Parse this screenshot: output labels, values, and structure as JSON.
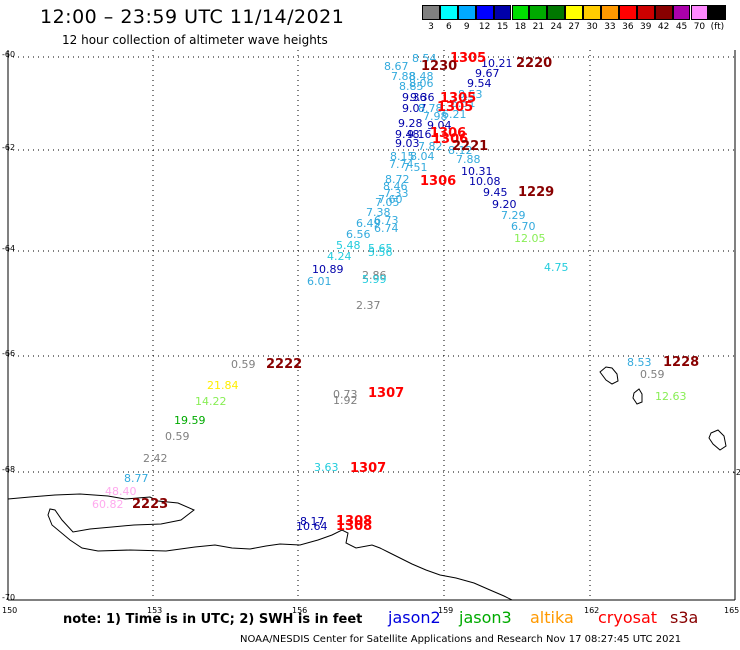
{
  "header": {
    "title": "12:00 – 23:59 UTC 11/14/2021",
    "subtitle": "12 hour collection of altimeter wave heights"
  },
  "colorbar": {
    "labels": [
      "3",
      "6",
      "9",
      "12",
      "15",
      "18",
      "21",
      "24",
      "27",
      "30",
      "33",
      "36",
      "39",
      "42",
      "45",
      "70",
      "(ft)"
    ],
    "colors": [
      "#808080",
      "#00ffff",
      "#00aaff",
      "#0000ff",
      "#0000aa",
      "#00dd00",
      "#00aa00",
      "#007700",
      "#ffff00",
      "#ffcc00",
      "#ff9900",
      "#ff0000",
      "#cc0000",
      "#880000",
      "#aa00aa",
      "#ff88ff",
      "#000000"
    ]
  },
  "axes": {
    "lat_labels": [
      "-60",
      "-62",
      "-64",
      "-66",
      "-68",
      "-70"
    ],
    "lon_labels": [
      "150",
      "153",
      "156",
      "159",
      "162",
      "165"
    ],
    "edge_label": "-2"
  },
  "observations": [
    {
      "text": "8.54",
      "color": "#33aadd"
    },
    {
      "text": "8.67",
      "color": "#33aadd"
    },
    {
      "text": "7.88",
      "color": "#33aadd"
    },
    {
      "text": "8.48",
      "color": "#33aadd"
    },
    {
      "text": "8.06",
      "color": "#33aadd"
    },
    {
      "text": "8.85",
      "color": "#33aadd"
    },
    {
      "text": "9.36",
      "color": "#0000aa"
    },
    {
      "text": "9.36",
      "color": "#0000aa"
    },
    {
      "text": "9.07",
      "color": "#0000aa"
    },
    {
      "text": "8.78",
      "color": "#33aadd"
    },
    {
      "text": "10.21",
      "color": "#0000aa"
    },
    {
      "text": "9.67",
      "color": "#0000aa"
    },
    {
      "text": "9.54",
      "color": "#0000aa"
    },
    {
      "text": "8.53",
      "color": "#33aadd"
    },
    {
      "text": "6.51",
      "color": "#33aadd"
    },
    {
      "text": "6.21",
      "color": "#33aadd"
    },
    {
      "text": "7.98",
      "color": "#33aadd"
    },
    {
      "text": "9.28",
      "color": "#0000aa"
    },
    {
      "text": "9.04",
      "color": "#0000aa"
    },
    {
      "text": "9.48",
      "color": "#0000aa"
    },
    {
      "text": "9.16",
      "color": "#0000aa"
    },
    {
      "text": "9.03",
      "color": "#0000aa"
    },
    {
      "text": "7.82",
      "color": "#33aadd"
    },
    {
      "text": "8.12",
      "color": "#33aadd"
    },
    {
      "text": "8.15",
      "color": "#33aadd"
    },
    {
      "text": "8.04",
      "color": "#33aadd"
    },
    {
      "text": "7.88",
      "color": "#33aadd"
    },
    {
      "text": "7.74",
      "color": "#33aadd"
    },
    {
      "text": "7.51",
      "color": "#33aadd"
    },
    {
      "text": "10.31",
      "color": "#0000aa"
    },
    {
      "text": "8.72",
      "color": "#33aadd"
    },
    {
      "text": "8.46",
      "color": "#33aadd"
    },
    {
      "text": "10.08",
      "color": "#0000aa"
    },
    {
      "text": "7.33",
      "color": "#33aadd"
    },
    {
      "text": "9.45",
      "color": "#0000aa"
    },
    {
      "text": "7.60",
      "color": "#33aadd"
    },
    {
      "text": "7.05",
      "color": "#33aadd"
    },
    {
      "text": "9.20",
      "color": "#0000aa"
    },
    {
      "text": "7.38",
      "color": "#33aadd"
    },
    {
      "text": "7.29",
      "color": "#33aadd"
    },
    {
      "text": "6.73",
      "color": "#33aadd"
    },
    {
      "text": "6.49",
      "color": "#33aadd"
    },
    {
      "text": "6.70",
      "color": "#33aadd"
    },
    {
      "text": "6.74",
      "color": "#33aadd"
    },
    {
      "text": "6.56",
      "color": "#33aadd"
    },
    {
      "text": "12.05",
      "color": "#88ee55"
    },
    {
      "text": "5.48",
      "color": "#22ccdd"
    },
    {
      "text": "5.65",
      "color": "#22ccdd"
    },
    {
      "text": "4.24",
      "color": "#22ccdd"
    },
    {
      "text": "5.56",
      "color": "#22ccdd"
    },
    {
      "text": "4.75",
      "color": "#22ccdd"
    },
    {
      "text": "10.89",
      "color": "#0000aa"
    },
    {
      "text": "2.86",
      "color": "#808080"
    },
    {
      "text": "6.01",
      "color": "#33aadd"
    },
    {
      "text": "5.99",
      "color": "#22ccdd"
    },
    {
      "text": "2.37",
      "color": "#808080"
    },
    {
      "text": "0.59",
      "color": "#808080"
    },
    {
      "text": "8.53",
      "color": "#33aadd"
    },
    {
      "text": "0.59",
      "color": "#808080"
    },
    {
      "text": "21.84",
      "color": "#ffee00"
    },
    {
      "text": "0.73",
      "color": "#808080"
    },
    {
      "text": "1.92",
      "color": "#808080"
    },
    {
      "text": "14.22",
      "color": "#88ee55"
    },
    {
      "text": "12.63",
      "color": "#88ee55"
    },
    {
      "text": "19.59",
      "color": "#00aa00"
    },
    {
      "text": "0.59",
      "color": "#808080"
    },
    {
      "text": "2.42",
      "color": "#808080"
    },
    {
      "text": "3.63",
      "color": "#22ccdd"
    },
    {
      "text": "8.77",
      "color": "#33aadd"
    },
    {
      "text": "48.40",
      "color": "#ffaaee"
    },
    {
      "text": "60.82",
      "color": "#ffaaee"
    },
    {
      "text": "8.17",
      "color": "#0000aa"
    },
    {
      "text": "10.64",
      "color": "#0000aa"
    }
  ],
  "pass_times": [
    {
      "text": "1305",
      "color": "#ff0000"
    },
    {
      "text": "1230",
      "color": "#880000"
    },
    {
      "text": "2220",
      "color": "#880000"
    },
    {
      "text": "1305",
      "color": "#ff0000"
    },
    {
      "text": "1305",
      "color": "#ff0000"
    },
    {
      "text": "1306",
      "color": "#ff0000"
    },
    {
      "text": "1306",
      "color": "#ff0000"
    },
    {
      "text": "2221",
      "color": "#880000"
    },
    {
      "text": "1306",
      "color": "#ff0000"
    },
    {
      "text": "1229",
      "color": "#880000"
    },
    {
      "text": "2222",
      "color": "#880000"
    },
    {
      "text": "1228",
      "color": "#880000"
    },
    {
      "text": "1307",
      "color": "#ff0000"
    },
    {
      "text": "1307",
      "color": "#ff0000"
    },
    {
      "text": "2223",
      "color": "#880000"
    },
    {
      "text": "1308",
      "color": "#ff0000"
    },
    {
      "text": "1308",
      "color": "#ff0000"
    }
  ],
  "footer": {
    "note": "note:  1) Time is in UTC;  2) SWH is in feet",
    "legend": [
      {
        "label": "jason2",
        "color": "#0000dd"
      },
      {
        "label": "jason3",
        "color": "#00aa00"
      },
      {
        "label": "altika",
        "color": "#ff9900"
      },
      {
        "label": "cryosat",
        "color": "#ff0000"
      },
      {
        "label": "s3a",
        "color": "#880000"
      }
    ],
    "credit": "NOAA/NESDIS Center for Satellite Applications and Research   Nov 17 08:27:45 UTC 2021"
  }
}
